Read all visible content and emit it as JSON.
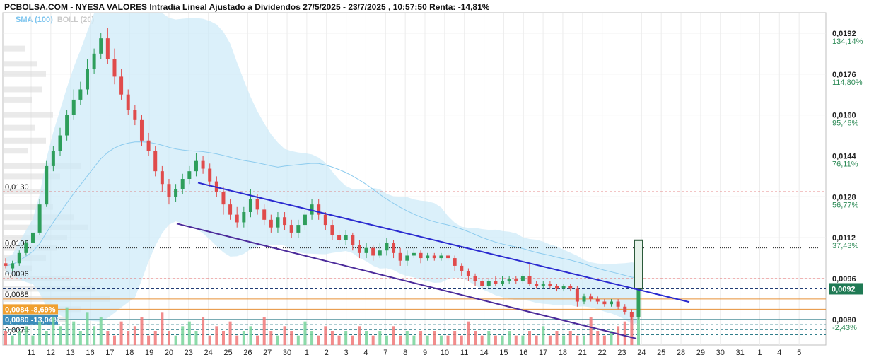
{
  "chart_data": {
    "type": "candlestick",
    "title": "PCBOLSA.COM - NYESA VALORES Intradia Lineal Ajustado a Dividendos 27/5/2025 - 23/7/2025 , 10:57:50 Renta: -14,81%",
    "indicators": {
      "sma": "SMA (100)",
      "boll": "BOLL (20)"
    },
    "ylim": [
      0.007,
      0.02
    ],
    "grid": true,
    "x_ticks": [
      "11",
      "12",
      "13",
      "16",
      "17",
      "18",
      "19",
      "20",
      "23",
      "24",
      "25",
      "26",
      "27",
      "30",
      "1",
      "2",
      "3",
      "4",
      "7",
      "8",
      "9",
      "10",
      "11",
      "14",
      "15",
      "16",
      "17",
      "18",
      "21",
      "22",
      "23",
      "24",
      "25",
      "28",
      "29",
      "30",
      "31",
      "1",
      "4",
      "5"
    ],
    "right_axis": [
      {
        "price": "0,0192",
        "pct": "134,14%"
      },
      {
        "price": "0,0176",
        "pct": "114,80%"
      },
      {
        "price": "0,0160",
        "pct": "95,46%"
      },
      {
        "price": "0,0144",
        "pct": "76,11%"
      },
      {
        "price": "0,0128",
        "pct": "56,77%"
      },
      {
        "price": "0,0112",
        "pct": "37,43%"
      },
      {
        "price": "0,0096",
        "pct": "18,09%"
      },
      {
        "price": "0,0080",
        "pct": "-2,43%"
      }
    ],
    "left_levels": [
      {
        "price": "0,0130"
      },
      {
        "price": "0,0108"
      },
      {
        "price": "0,0096"
      },
      {
        "price": "0,0088"
      },
      {
        "price": "0,0084",
        "pct": "-8,69%"
      },
      {
        "price": "0,0080",
        "pct": "-13,04%"
      },
      {
        "price": "0,0074"
      }
    ],
    "current_price": "0,0092",
    "candles": [
      [
        0.0102,
        0.0101,
        0.0104,
        0.01
      ],
      [
        0.01,
        0.0102,
        0.0103,
        0.0099
      ],
      [
        0.0102,
        0.0106,
        0.0107,
        0.0101
      ],
      [
        0.0106,
        0.011,
        0.0111,
        0.0105
      ],
      [
        0.011,
        0.0114,
        0.0115,
        0.0109
      ],
      [
        0.0114,
        0.0125,
        0.0127,
        0.0113
      ],
      [
        0.0125,
        0.014,
        0.0142,
        0.0124
      ],
      [
        0.014,
        0.0146,
        0.0148,
        0.0138
      ],
      [
        0.0146,
        0.0152,
        0.0155,
        0.0144
      ],
      [
        0.0152,
        0.016,
        0.0162,
        0.015
      ],
      [
        0.016,
        0.0166,
        0.017,
        0.0158
      ],
      [
        0.0166,
        0.017,
        0.0173,
        0.0164
      ],
      [
        0.017,
        0.0178,
        0.0182,
        0.0168
      ],
      [
        0.0178,
        0.0184,
        0.0186,
        0.0176
      ],
      [
        0.0184,
        0.019,
        0.0192,
        0.0182
      ],
      [
        0.019,
        0.0182,
        0.0194,
        0.018
      ],
      [
        0.0182,
        0.0175,
        0.0186,
        0.0172
      ],
      [
        0.0175,
        0.0168,
        0.0178,
        0.0166
      ],
      [
        0.0168,
        0.0162,
        0.017,
        0.016
      ],
      [
        0.0162,
        0.0158,
        0.0164,
        0.0156
      ],
      [
        0.0158,
        0.015,
        0.016,
        0.0148
      ],
      [
        0.015,
        0.0146,
        0.0153,
        0.0144
      ],
      [
        0.0146,
        0.0138,
        0.0148,
        0.0136
      ],
      [
        0.0138,
        0.0133,
        0.014,
        0.013
      ],
      [
        0.0133,
        0.0128,
        0.0135,
        0.0125
      ],
      [
        0.0128,
        0.0131,
        0.0133,
        0.0126
      ],
      [
        0.0131,
        0.0135,
        0.0137,
        0.0129
      ],
      [
        0.0135,
        0.0138,
        0.014,
        0.0133
      ],
      [
        0.0138,
        0.0142,
        0.0145,
        0.0136
      ],
      [
        0.0142,
        0.0139,
        0.0144,
        0.0137
      ],
      [
        0.0139,
        0.0134,
        0.0141,
        0.0132
      ],
      [
        0.0134,
        0.013,
        0.0136,
        0.0128
      ],
      [
        0.013,
        0.0125,
        0.0132,
        0.0121
      ],
      [
        0.0125,
        0.0121,
        0.0127,
        0.0119
      ],
      [
        0.0121,
        0.0118,
        0.0124,
        0.0116
      ],
      [
        0.0118,
        0.0122,
        0.0124,
        0.0116
      ],
      [
        0.0122,
        0.0127,
        0.0131,
        0.012
      ],
      [
        0.0127,
        0.0123,
        0.0129,
        0.0121
      ],
      [
        0.0123,
        0.0119,
        0.0125,
        0.0117
      ],
      [
        0.0119,
        0.0116,
        0.0121,
        0.0114
      ],
      [
        0.0116,
        0.012,
        0.0122,
        0.0114
      ],
      [
        0.012,
        0.0117,
        0.0122,
        0.0115
      ],
      [
        0.0117,
        0.0114,
        0.0119,
        0.0112
      ],
      [
        0.0114,
        0.0117,
        0.0119,
        0.0112
      ],
      [
        0.0117,
        0.0121,
        0.0123,
        0.0115
      ],
      [
        0.0121,
        0.0125,
        0.0127,
        0.0119
      ],
      [
        0.0125,
        0.0121,
        0.0127,
        0.0119
      ],
      [
        0.0121,
        0.0117,
        0.0122,
        0.0115
      ],
      [
        0.0117,
        0.0113,
        0.0119,
        0.0111
      ],
      [
        0.0113,
        0.0111,
        0.0115,
        0.0109
      ],
      [
        0.0111,
        0.0113,
        0.0115,
        0.0109
      ],
      [
        0.0113,
        0.0109,
        0.0114,
        0.0107
      ],
      [
        0.0109,
        0.0106,
        0.0111,
        0.0104
      ],
      [
        0.0106,
        0.0108,
        0.011,
        0.0104
      ],
      [
        0.0108,
        0.0105,
        0.0109,
        0.0103
      ],
      [
        0.0105,
        0.0107,
        0.011,
        0.0104
      ],
      [
        0.0107,
        0.011,
        0.0112,
        0.0105
      ],
      [
        0.011,
        0.0106,
        0.0111,
        0.0104
      ],
      [
        0.0106,
        0.0103,
        0.0108,
        0.0101
      ],
      [
        0.0103,
        0.0105,
        0.0107,
        0.0101
      ],
      [
        0.0105,
        0.0106,
        0.0108,
        0.0104
      ],
      [
        0.0106,
        0.0104,
        0.0107,
        0.0102
      ],
      [
        0.0104,
        0.0105,
        0.0106,
        0.0103
      ],
      [
        0.0105,
        0.0104,
        0.0106,
        0.0103
      ],
      [
        0.0104,
        0.0105,
        0.0106,
        0.0103
      ],
      [
        0.0105,
        0.0104,
        0.0106,
        0.0103
      ],
      [
        0.0104,
        0.0101,
        0.0105,
        0.0099
      ],
      [
        0.0101,
        0.0099,
        0.0102,
        0.0097
      ],
      [
        0.0099,
        0.0097,
        0.01,
        0.0095
      ],
      [
        0.0097,
        0.0095,
        0.0098,
        0.0093
      ],
      [
        0.0095,
        0.0093,
        0.0096,
        0.0092
      ],
      [
        0.0093,
        0.0095,
        0.0096,
        0.0092
      ],
      [
        0.0095,
        0.0094,
        0.0097,
        0.0093
      ],
      [
        0.0094,
        0.0095,
        0.0097,
        0.0093
      ],
      [
        0.0095,
        0.0096,
        0.0097,
        0.0094
      ],
      [
        0.0096,
        0.0095,
        0.0097,
        0.0094
      ],
      [
        0.0095,
        0.0097,
        0.0098,
        0.0094
      ],
      [
        0.0097,
        0.0094,
        0.0102,
        0.0093
      ],
      [
        0.0094,
        0.0093,
        0.0095,
        0.0092
      ],
      [
        0.0093,
        0.0094,
        0.0095,
        0.0092
      ],
      [
        0.0094,
        0.0093,
        0.0095,
        0.0092
      ],
      [
        0.0093,
        0.0092,
        0.0094,
        0.0091
      ],
      [
        0.0092,
        0.0093,
        0.0094,
        0.0091
      ],
      [
        0.0093,
        0.0092,
        0.0094,
        0.0091
      ],
      [
        0.0092,
        0.0087,
        0.0093,
        0.0085
      ],
      [
        0.0087,
        0.0089,
        0.009,
        0.0086
      ],
      [
        0.0089,
        0.0088,
        0.009,
        0.0087
      ],
      [
        0.0088,
        0.0087,
        0.0089,
        0.0086
      ],
      [
        0.0087,
        0.0086,
        0.0088,
        0.0085
      ],
      [
        0.0086,
        0.0087,
        0.0088,
        0.0085
      ],
      [
        0.0087,
        0.0085,
        0.0088,
        0.0084
      ],
      [
        0.0085,
        0.0083,
        0.0086,
        0.0082
      ],
      [
        0.0083,
        0.0081,
        0.0084,
        0.008
      ],
      [
        0.0081,
        0.0092,
        0.0111,
        0.008
      ]
    ],
    "volumes": [
      3,
      2,
      3,
      4,
      2,
      5,
      3,
      6,
      4,
      8,
      5,
      3,
      7,
      4,
      6,
      3,
      2,
      5,
      3,
      4,
      6,
      2,
      3,
      7,
      3,
      2,
      4,
      5,
      3,
      6,
      2,
      4,
      3,
      5,
      2,
      3,
      4,
      2,
      6,
      3,
      2,
      4,
      3,
      2,
      5,
      3,
      2,
      4,
      3,
      2,
      3,
      2,
      4,
      3,
      2,
      3,
      2,
      4,
      2,
      3,
      2,
      3,
      2,
      3,
      2,
      2,
      3,
      2,
      5,
      3,
      2,
      3,
      2,
      2,
      3,
      2,
      2,
      3,
      2,
      4,
      2,
      3,
      2,
      3,
      2,
      2,
      6,
      3,
      2,
      3,
      4,
      5,
      6,
      9
    ]
  }
}
